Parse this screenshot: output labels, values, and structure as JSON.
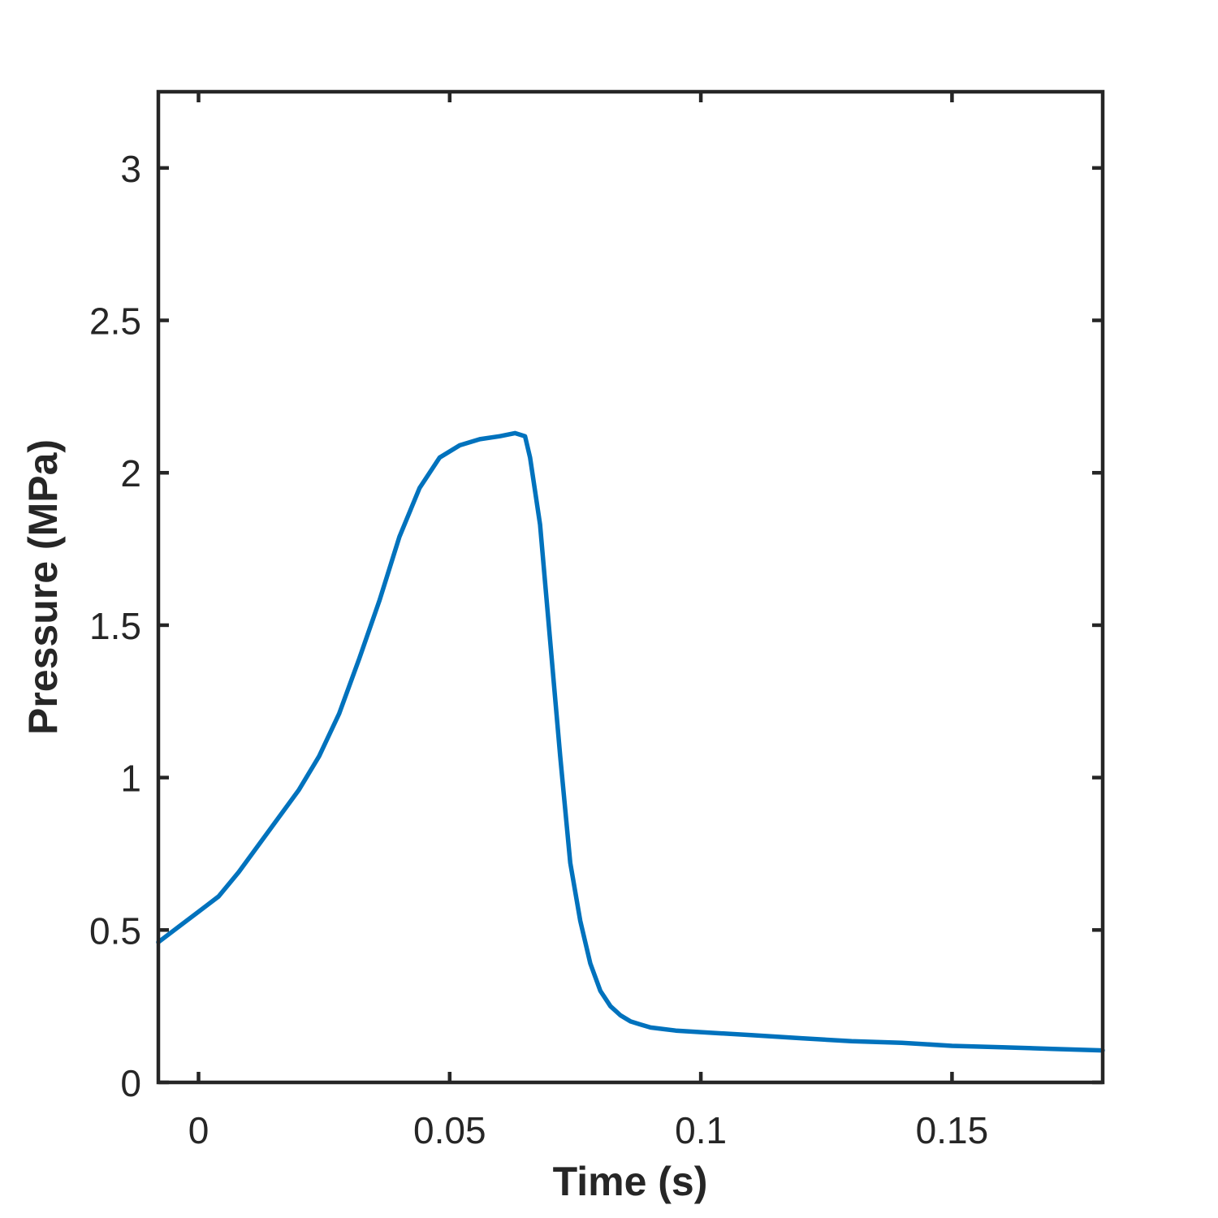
{
  "chart_data": {
    "type": "line",
    "title": "",
    "xlabel": "Time (s)",
    "ylabel": "Pressure (MPa)",
    "xlim": [
      -0.008,
      0.18
    ],
    "ylim": [
      0,
      3.25
    ],
    "xticks": [
      0,
      0.05,
      0.1,
      0.15
    ],
    "xtick_labels": [
      "0",
      "0.05",
      "0.1",
      "0.15"
    ],
    "yticks": [
      0,
      0.5,
      1,
      1.5,
      2,
      2.5,
      3
    ],
    "ytick_labels": [
      "0",
      "0.5",
      "1",
      "1.5",
      "2",
      "2.5",
      "3"
    ],
    "grid": false,
    "line_color": "#0072BD",
    "axis_color": "#262626",
    "series": [
      {
        "x": [
          -0.008,
          -0.004,
          0.0,
          0.004,
          0.008,
          0.012,
          0.016,
          0.02,
          0.024,
          0.028,
          0.032,
          0.036,
          0.04,
          0.044,
          0.048,
          0.052,
          0.056,
          0.06,
          0.063,
          0.065,
          0.066,
          0.068,
          0.07,
          0.072,
          0.074,
          0.076,
          0.078,
          0.08,
          0.082,
          0.084,
          0.086,
          0.088,
          0.09,
          0.095,
          0.1,
          0.11,
          0.12,
          0.13,
          0.14,
          0.15,
          0.16,
          0.17,
          0.18
        ],
        "y": [
          0.46,
          0.51,
          0.56,
          0.61,
          0.69,
          0.78,
          0.87,
          0.96,
          1.07,
          1.21,
          1.39,
          1.58,
          1.79,
          1.95,
          2.05,
          2.09,
          2.11,
          2.12,
          2.13,
          2.12,
          2.05,
          1.83,
          1.45,
          1.07,
          0.72,
          0.53,
          0.39,
          0.3,
          0.25,
          0.22,
          0.2,
          0.19,
          0.18,
          0.17,
          0.165,
          0.155,
          0.145,
          0.135,
          0.13,
          0.12,
          0.115,
          0.11,
          0.105
        ]
      }
    ]
  }
}
